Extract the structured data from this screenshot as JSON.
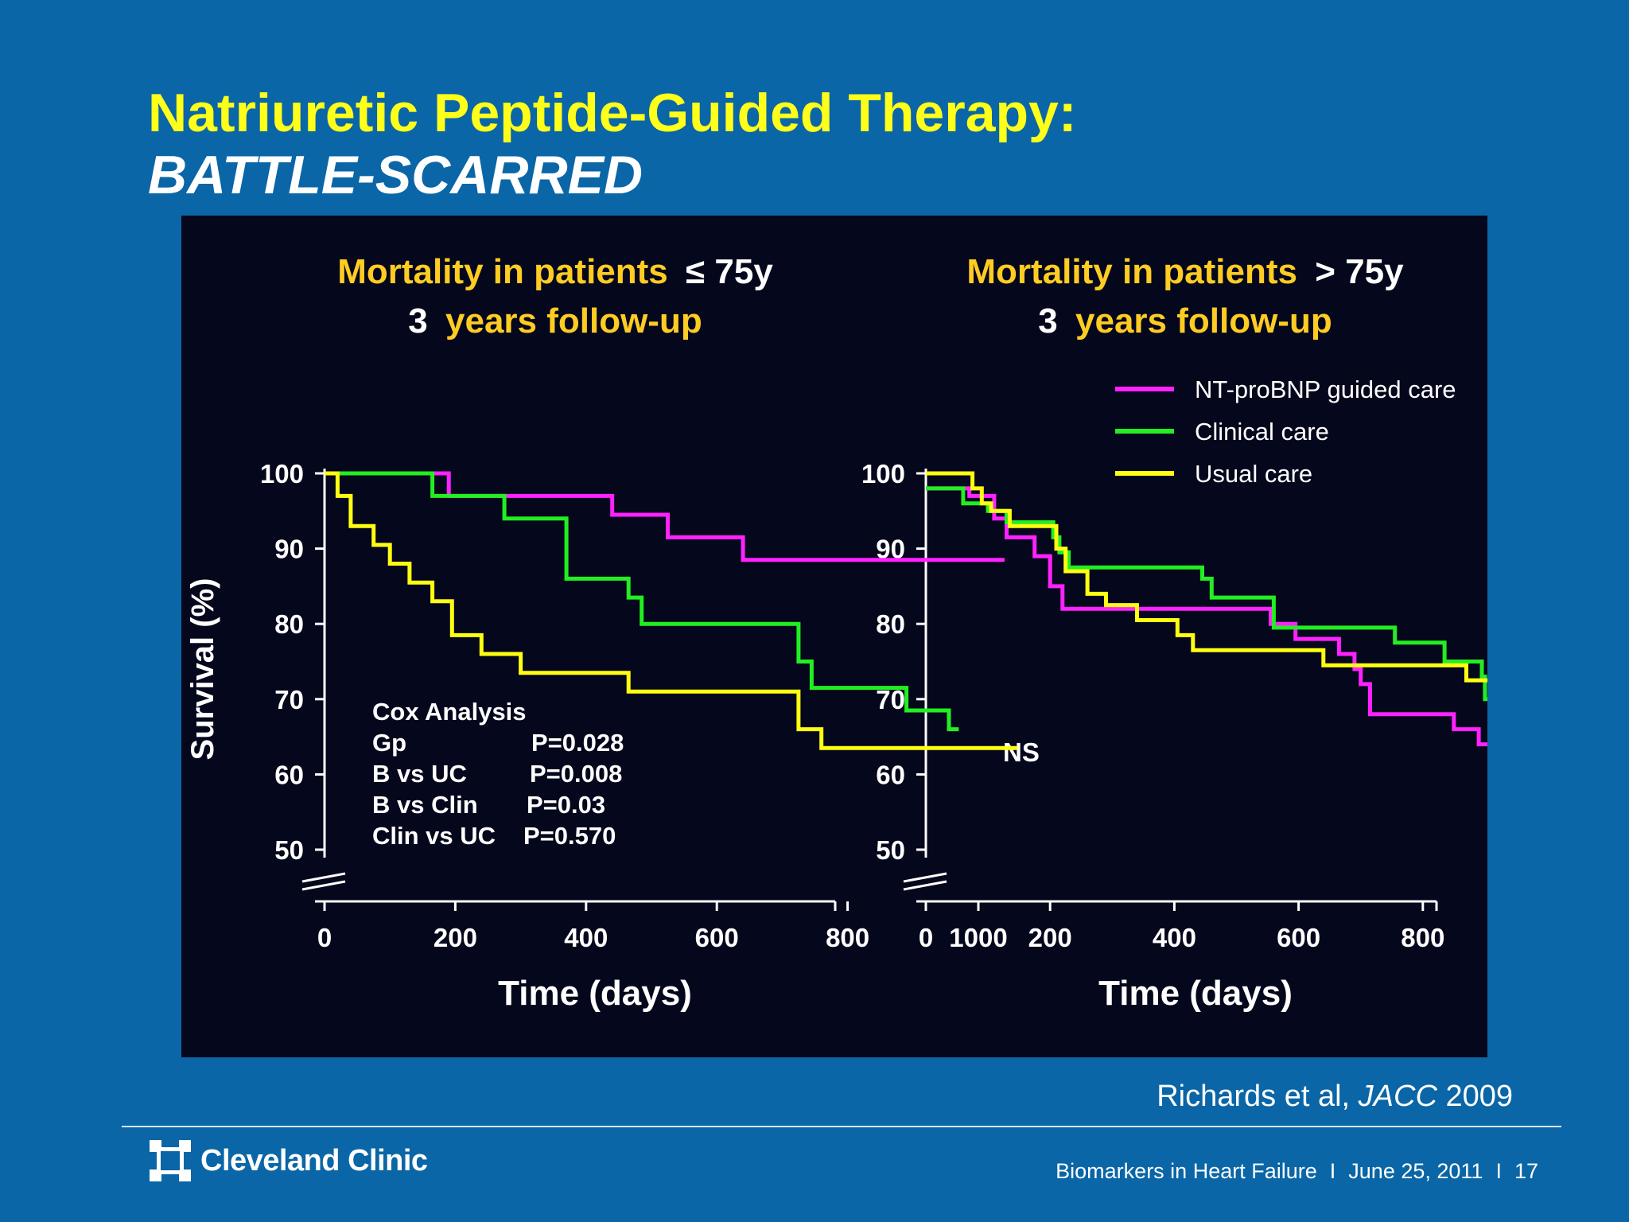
{
  "slide": {
    "title": "Natriuretic Peptide-Guided Therapy:",
    "subtitle": "BATTLE-SCARRED",
    "citation_authors": "Richards et al,",
    "citation_journal": "JACC",
    "citation_year": "2009",
    "logo_text": "Cleveland Clinic",
    "footer_title": "Biomarkers in Heart Failure",
    "footer_sep": "I",
    "footer_date": "June 25, 2011",
    "page_number": "17"
  },
  "colors": {
    "background": "#0a66a6",
    "title": "#ffff1a",
    "chart_title": "#ffcc22",
    "panel": "#05071c",
    "nt_probnp": "#ff22ff",
    "clinical": "#22ee22",
    "usual": "#ffff11"
  },
  "chart_data": [
    {
      "type": "line",
      "step": true,
      "title_line1_highlight": "Mortality in patients",
      "title_line1_rest": "≤ 75y",
      "title_line2_prefix": "3",
      "title_line2_highlight": "years follow-up",
      "xlabel": "Time (days)",
      "ylabel": "Survival (%)",
      "xlim": [
        0,
        1100
      ],
      "ylim": [
        50,
        100
      ],
      "x_ticks": [
        "0",
        "200",
        "400",
        "600",
        "800",
        "1000"
      ],
      "y_ticks": [
        "100",
        "90",
        "80",
        "70",
        "60",
        "50"
      ],
      "axis_break": true,
      "annotation": {
        "title": "Cox Analysis",
        "rows": [
          {
            "label": "Gp",
            "value": "P=0.028"
          },
          {
            "label": "B vs UC",
            "value": "P=0.008"
          },
          {
            "label": "B vs Clin",
            "value": "P=0.03"
          },
          {
            "label": "Clin vs UC",
            "value": "P=0.570"
          }
        ]
      },
      "series": [
        {
          "name": "NT-proBNP guided care",
          "color": "#ff22ff",
          "x": [
            0,
            190,
            190,
            440,
            440,
            525,
            525,
            640,
            640,
            1040
          ],
          "y": [
            100,
            100,
            97,
            97,
            94.5,
            94.5,
            91.5,
            91.5,
            88.5,
            88.5
          ]
        },
        {
          "name": "Clinical care",
          "color": "#22ee22",
          "x": [
            0,
            165,
            165,
            275,
            275,
            370,
            370,
            465,
            465,
            485,
            485,
            725,
            725,
            745,
            745,
            890,
            890,
            955,
            955,
            970
          ],
          "y": [
            100,
            100,
            97,
            97,
            94,
            94,
            86,
            86,
            83.5,
            83.5,
            80,
            80,
            75,
            75,
            71.5,
            71.5,
            68.5,
            68.5,
            66,
            66
          ]
        },
        {
          "name": "Usual care",
          "color": "#ffff11",
          "x": [
            0,
            20,
            20,
            40,
            40,
            75,
            75,
            100,
            100,
            130,
            130,
            165,
            165,
            195,
            195,
            240,
            240,
            300,
            300,
            465,
            465,
            725,
            725,
            760,
            760,
            835,
            835,
            1060
          ],
          "y": [
            100,
            100,
            97,
            97,
            93,
            93,
            90.5,
            90.5,
            88,
            88,
            85.5,
            85.5,
            83,
            83,
            78.5,
            78.5,
            76,
            76,
            73.5,
            73.5,
            71,
            71,
            66,
            66,
            63.5,
            63.5,
            63.5,
            63.5
          ]
        }
      ]
    },
    {
      "type": "line",
      "step": true,
      "title_line1_highlight": "Mortality in patients",
      "title_line1_rest": "> 75y",
      "title_line2_prefix": "3",
      "title_line2_highlight": "years follow-up",
      "xlabel": "Time (days)",
      "xlim": [
        0,
        1100
      ],
      "ylim": [
        50,
        100
      ],
      "x_ticks": [
        "0",
        "200",
        "400",
        "600",
        "800",
        "1000"
      ],
      "y_ticks": [
        "100",
        "90",
        "80",
        "70",
        "60",
        "50"
      ],
      "axis_break": true,
      "annotation_text": "NS",
      "legend_position": "top-right",
      "series": [
        {
          "name": "NT-proBNP guided care",
          "color": "#ff22ff",
          "x": [
            0,
            70,
            70,
            110,
            110,
            130,
            130,
            175,
            175,
            200,
            200,
            220,
            220,
            245,
            245,
            555,
            555,
            595,
            595,
            665,
            665,
            690,
            690,
            700,
            700,
            715,
            715,
            850,
            850,
            890,
            890,
            910,
            910,
            960,
            960,
            990,
            990,
            1010,
            1010,
            1025,
            1025,
            1040,
            1040,
            1080
          ],
          "y": [
            98,
            98,
            97,
            97,
            94,
            94,
            91.5,
            91.5,
            89,
            89,
            85,
            85,
            82,
            82,
            82,
            82,
            80,
            80,
            78,
            78,
            76,
            76,
            74,
            74,
            72,
            72,
            68,
            68,
            66,
            66,
            64,
            64,
            62,
            62,
            60,
            60,
            57,
            57,
            54,
            54,
            50.5,
            50.5,
            50.5,
            50.5
          ]
        },
        {
          "name": "Clinical care",
          "color": "#22ee22",
          "x": [
            0,
            60,
            60,
            100,
            100,
            130,
            130,
            205,
            205,
            215,
            215,
            230,
            230,
            445,
            445,
            460,
            460,
            560,
            560,
            755,
            755,
            835,
            835,
            895,
            895,
            900,
            900,
            930,
            930,
            1020,
            1020,
            1040,
            1040,
            1080
          ],
          "y": [
            98,
            98,
            96,
            96,
            95,
            95,
            93.5,
            93.5,
            91.5,
            91.5,
            89.5,
            89.5,
            87.5,
            87.5,
            86,
            86,
            83.5,
            83.5,
            79.5,
            79.5,
            77.5,
            77.5,
            75,
            75,
            73,
            73,
            70,
            70,
            68,
            68,
            66,
            66,
            66,
            66
          ]
        },
        {
          "name": "Usual care",
          "color": "#ffff11",
          "x": [
            0,
            75,
            75,
            90,
            90,
            105,
            105,
            135,
            135,
            210,
            210,
            225,
            225,
            260,
            260,
            290,
            290,
            340,
            340,
            405,
            405,
            430,
            430,
            640,
            640,
            660,
            660,
            870,
            870,
            910,
            910,
            935,
            935,
            1000,
            1000,
            1045,
            1045,
            1080,
            1080
          ],
          "y": [
            100,
            100,
            98,
            98,
            96,
            96,
            95,
            95,
            93,
            93,
            90,
            90,
            87,
            87,
            84,
            84,
            82.5,
            82.5,
            80.5,
            80.5,
            78.5,
            78.5,
            76.5,
            76.5,
            74.5,
            74.5,
            74.5,
            74.5,
            72.5,
            72.5,
            70,
            70,
            67.5,
            67.5,
            65.5,
            65.5,
            63.5,
            63.5,
            61.5
          ]
        }
      ]
    }
  ]
}
